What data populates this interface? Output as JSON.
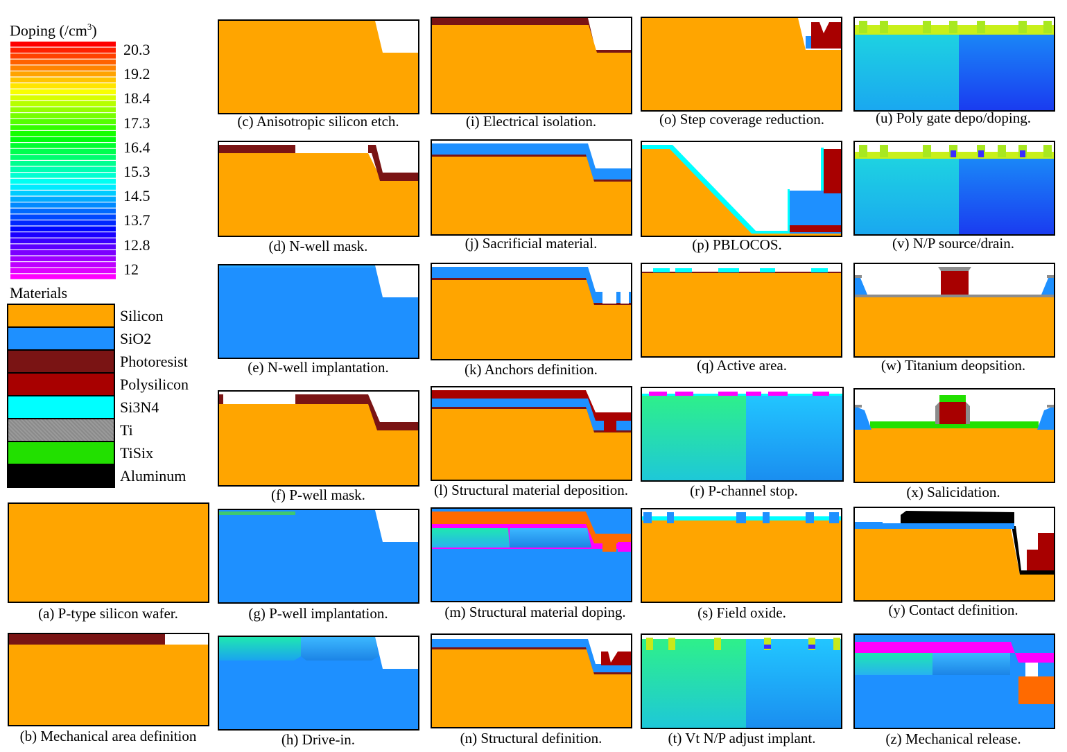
{
  "legend": {
    "doping_title": "Doping (/cm",
    "doping_title_sup": "3",
    "doping_title_end": ")",
    "doping_ticks": [
      "20.3",
      "19.2",
      "18.4",
      "17.3",
      "16.4",
      "15.3",
      "14.5",
      "13.7",
      "12.8",
      "12"
    ],
    "materials_title": "Materials",
    "materials": [
      {
        "name": "Silicon",
        "color": "#FFA500"
      },
      {
        "name": "SiO2",
        "color": "#1E90FF"
      },
      {
        "name": "Photoresist",
        "color": "#7A1414"
      },
      {
        "name": "Polysilicon",
        "color": "#A80000"
      },
      {
        "name": "Si3N4",
        "color": "#00FFFF"
      },
      {
        "name": "Ti",
        "color": "#8C8C8C"
      },
      {
        "name": "TiSix",
        "color": "#22E000"
      },
      {
        "name": "Aluminum",
        "color": "#000000"
      }
    ]
  },
  "panels": [
    {
      "id": "a",
      "caption": "(a) P-type silicon wafer.",
      "kind": "wafer"
    },
    {
      "id": "b",
      "caption": "(b) Mechanical area definition",
      "kind": "mechdef"
    },
    {
      "id": "c",
      "caption": "(c) Anisotropic silicon etch.",
      "kind": "etch"
    },
    {
      "id": "d",
      "caption": "(d) N-well mask.",
      "kind": "nwellmask"
    },
    {
      "id": "e",
      "caption": "(e) N-well implantation.",
      "kind": "nwellimp"
    },
    {
      "id": "f",
      "caption": "(f) P-well mask.",
      "kind": "pwellmask"
    },
    {
      "id": "g",
      "caption": "(g) P-well implantation.",
      "kind": "pwellimp"
    },
    {
      "id": "h",
      "caption": "(h) Drive-in.",
      "kind": "drivein"
    },
    {
      "id": "i",
      "caption": "(i) Electrical isolation.",
      "kind": "isolation"
    },
    {
      "id": "j",
      "caption": "(j) Sacrificial material.",
      "kind": "sacrificial"
    },
    {
      "id": "k",
      "caption": "(k) Anchors definition.",
      "kind": "anchors"
    },
    {
      "id": "l",
      "caption": "(l) Structural material deposition.",
      "kind": "structdep"
    },
    {
      "id": "m",
      "caption": "(m) Structural material doping.",
      "kind": "structdop"
    },
    {
      "id": "n",
      "caption": "(n) Structural definition.",
      "kind": "structdef"
    },
    {
      "id": "o",
      "caption": "(o) Step coverage reduction.",
      "kind": "stepcov"
    },
    {
      "id": "p",
      "caption": "(p) PBLOCOS.",
      "kind": "pblocos"
    },
    {
      "id": "q",
      "caption": "(q) Active area.",
      "kind": "active"
    },
    {
      "id": "r",
      "caption": "(r) P-channel stop.",
      "kind": "pchannel"
    },
    {
      "id": "s",
      "caption": "(s) Field oxide.",
      "kind": "fieldox"
    },
    {
      "id": "t",
      "caption": "(t) Vt N/P adjust implant.",
      "kind": "vtadjust"
    },
    {
      "id": "u",
      "caption": "(u) Poly gate depo/doping.",
      "kind": "polygate"
    },
    {
      "id": "v",
      "caption": "(v) N/P source/drain.",
      "kind": "sourcedrain"
    },
    {
      "id": "w",
      "caption": "(w) Titanium deopsition.",
      "kind": "titanium"
    },
    {
      "id": "x",
      "caption": "(x) Salicidation.",
      "kind": "salicid"
    },
    {
      "id": "y",
      "caption": "(y) Contact definition.",
      "kind": "contact"
    },
    {
      "id": "z",
      "caption": "(z) Mechanical release.",
      "kind": "release"
    }
  ]
}
